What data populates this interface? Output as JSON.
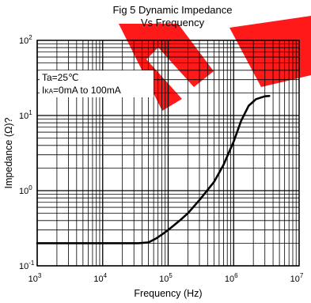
{
  "chart_data": {
    "type": "line",
    "title_line1": "Fig 5 Dynamic Impedance",
    "title_line2": "Vs Frequency",
    "xlabel": "Frequency   (Hz)",
    "ylabel": "Impedance  (Ω)?",
    "xscale": "log",
    "yscale": "log",
    "xlim": [
      1000,
      10000000
    ],
    "ylim": [
      0.1,
      100
    ],
    "grid": true,
    "x_ticks": [
      {
        "base": "10",
        "exp": "3"
      },
      {
        "base": "10",
        "exp": "4"
      },
      {
        "base": "10",
        "exp": "5"
      },
      {
        "base": "10",
        "exp": "6"
      },
      {
        "base": "10",
        "exp": "7"
      }
    ],
    "y_ticks": [
      {
        "base": "10",
        "exp": "-1"
      },
      {
        "base": "10",
        "exp": "0"
      },
      {
        "base": "10",
        "exp": "1"
      },
      {
        "base": "10",
        "exp": "2"
      }
    ],
    "legend": {
      "position": "top-left",
      "line1": "Ta=25℃",
      "line2_sub": "KA",
      "line2_prefix": "I",
      "line2_rest": "=0mA to 100mA"
    },
    "series": [
      {
        "x": [
          1000,
          10000,
          35000,
          50000,
          65000,
          80000,
          100000,
          150000,
          200000,
          300000,
          500000,
          700000,
          1000000,
          1300000,
          1700000,
          2200000,
          3000000,
          3500000
        ],
        "y": [
          0.2,
          0.2,
          0.2,
          0.205,
          0.23,
          0.26,
          0.3,
          0.4,
          0.5,
          0.75,
          1.3,
          2.2,
          4.5,
          8.5,
          13.5,
          16.5,
          18.0,
          18.2
        ]
      }
    ]
  }
}
